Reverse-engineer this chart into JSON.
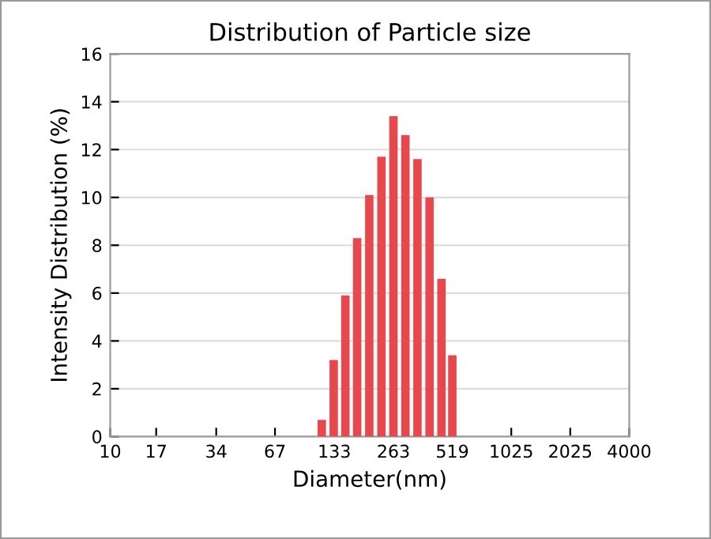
{
  "chart_data": {
    "type": "bar",
    "title": "Distribution of Particle size",
    "xlabel": "Diameter(nm)",
    "ylabel": "Intensity Distribution (%)",
    "x": [
      115,
      132,
      151,
      173,
      199,
      229,
      263,
      302,
      347,
      399,
      458,
      519
    ],
    "series": [
      {
        "color": "#e8474c",
        "values": [
          0.7,
          3.2,
          5.9,
          8.3,
          10.1,
          11.7,
          13.4,
          12.6,
          11.6,
          10.0,
          6.6,
          3.4
        ]
      }
    ],
    "log": "x",
    "xlim": [
      10,
      4000
    ],
    "xticks": [
      10,
      17,
      34,
      67,
      133,
      263,
      519,
      1025,
      2025,
      4000
    ],
    "ylim": [
      0,
      16
    ],
    "yticks": [
      0,
      2,
      4,
      6,
      8,
      10,
      12,
      14,
      16
    ],
    "grid": "y"
  }
}
